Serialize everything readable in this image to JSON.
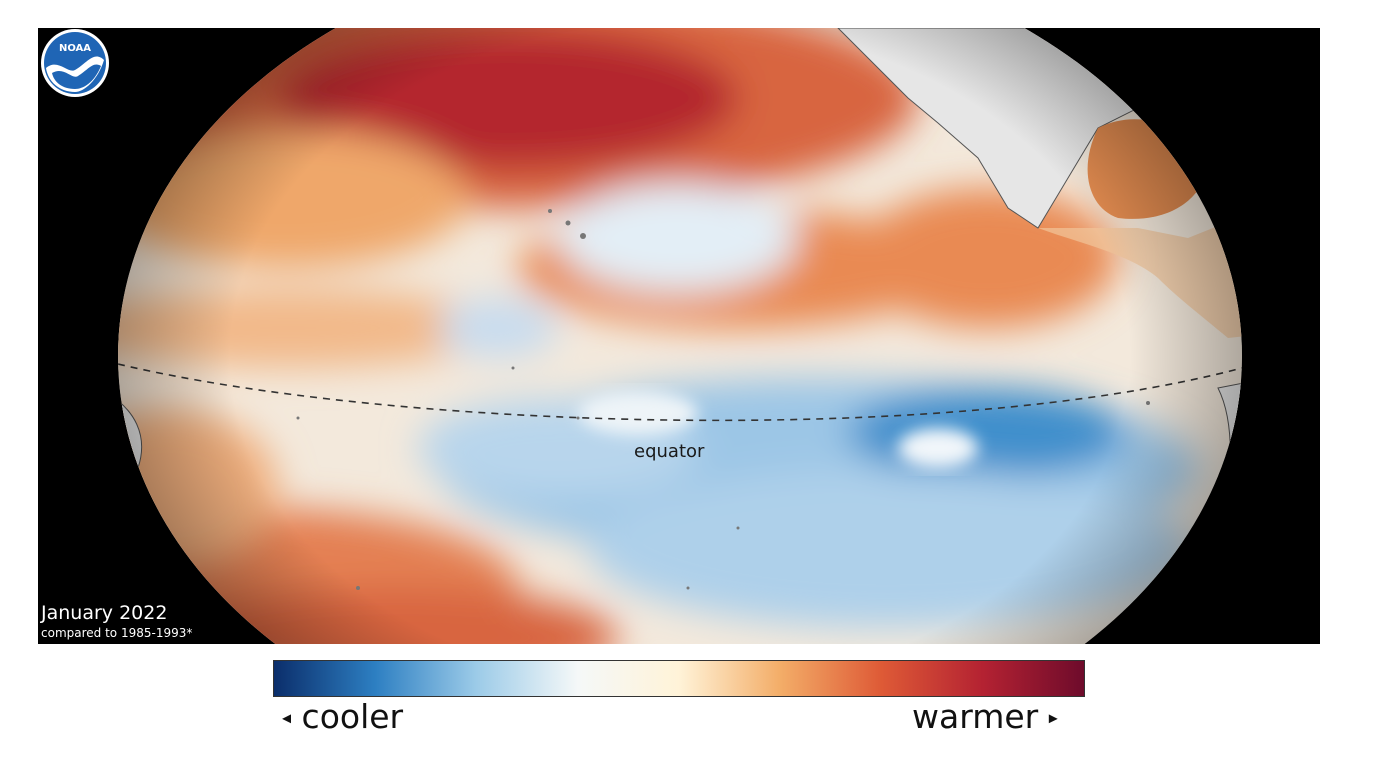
{
  "map": {
    "date_label": "January 2022",
    "baseline_label": "compared to 1985-1993*",
    "equator_label": "equator",
    "logo_text": "NOAA"
  },
  "legend": {
    "cooler_label": "cooler",
    "warmer_label": "warmer",
    "left_arrow_glyph": "◂",
    "right_arrow_glyph": "▸",
    "colors": [
      "#0b2e6b",
      "#2d7fc2",
      "#9ccbe8",
      "#f5f8f8",
      "#fff3d8",
      "#f3ad68",
      "#de5a36",
      "#b42232",
      "#6e0b2b"
    ]
  }
}
